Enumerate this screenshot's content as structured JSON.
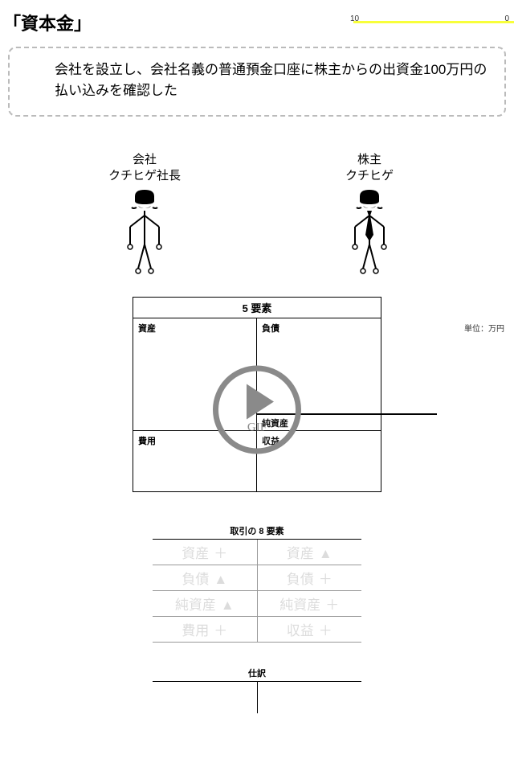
{
  "title": "「資本金」",
  "ruler": {
    "left_label": "10",
    "right_label": "0",
    "line_color": "#f8ff3a"
  },
  "description": "会社を設立し、会社名義の普通預金口座に株主からの出資金100万円の払い込みを確認した",
  "figures": {
    "left": {
      "line1": "会社",
      "line2": "クチヒゲ社長"
    },
    "right": {
      "line1": "株主",
      "line2": "クチヒゲ"
    }
  },
  "unit_label": "単位：万円",
  "five": {
    "title": "5 要素",
    "assets": "資産",
    "liabilities": "負債",
    "net_assets": "純資産",
    "expenses": "費用",
    "revenue": "収益"
  },
  "play": {
    "gif": "GIF"
  },
  "eight": {
    "title": "取引の 8 要素",
    "rows": [
      {
        "l": "資産",
        "ls": "＋",
        "r": "資産",
        "rs": "▲"
      },
      {
        "l": "負債",
        "ls": "▲",
        "r": "負債",
        "rs": "＋"
      },
      {
        "l": "純資産",
        "ls": "▲",
        "r": "純資産",
        "rs": "＋"
      },
      {
        "l": "費用",
        "ls": "＋",
        "r": "収益",
        "rs": "＋"
      }
    ],
    "faded_color": "#dcdcdc"
  },
  "journal": {
    "title": "仕訳"
  },
  "colors": {
    "border": "#000000",
    "dash": "#bbbbbb",
    "play": "#8a8a8a"
  }
}
